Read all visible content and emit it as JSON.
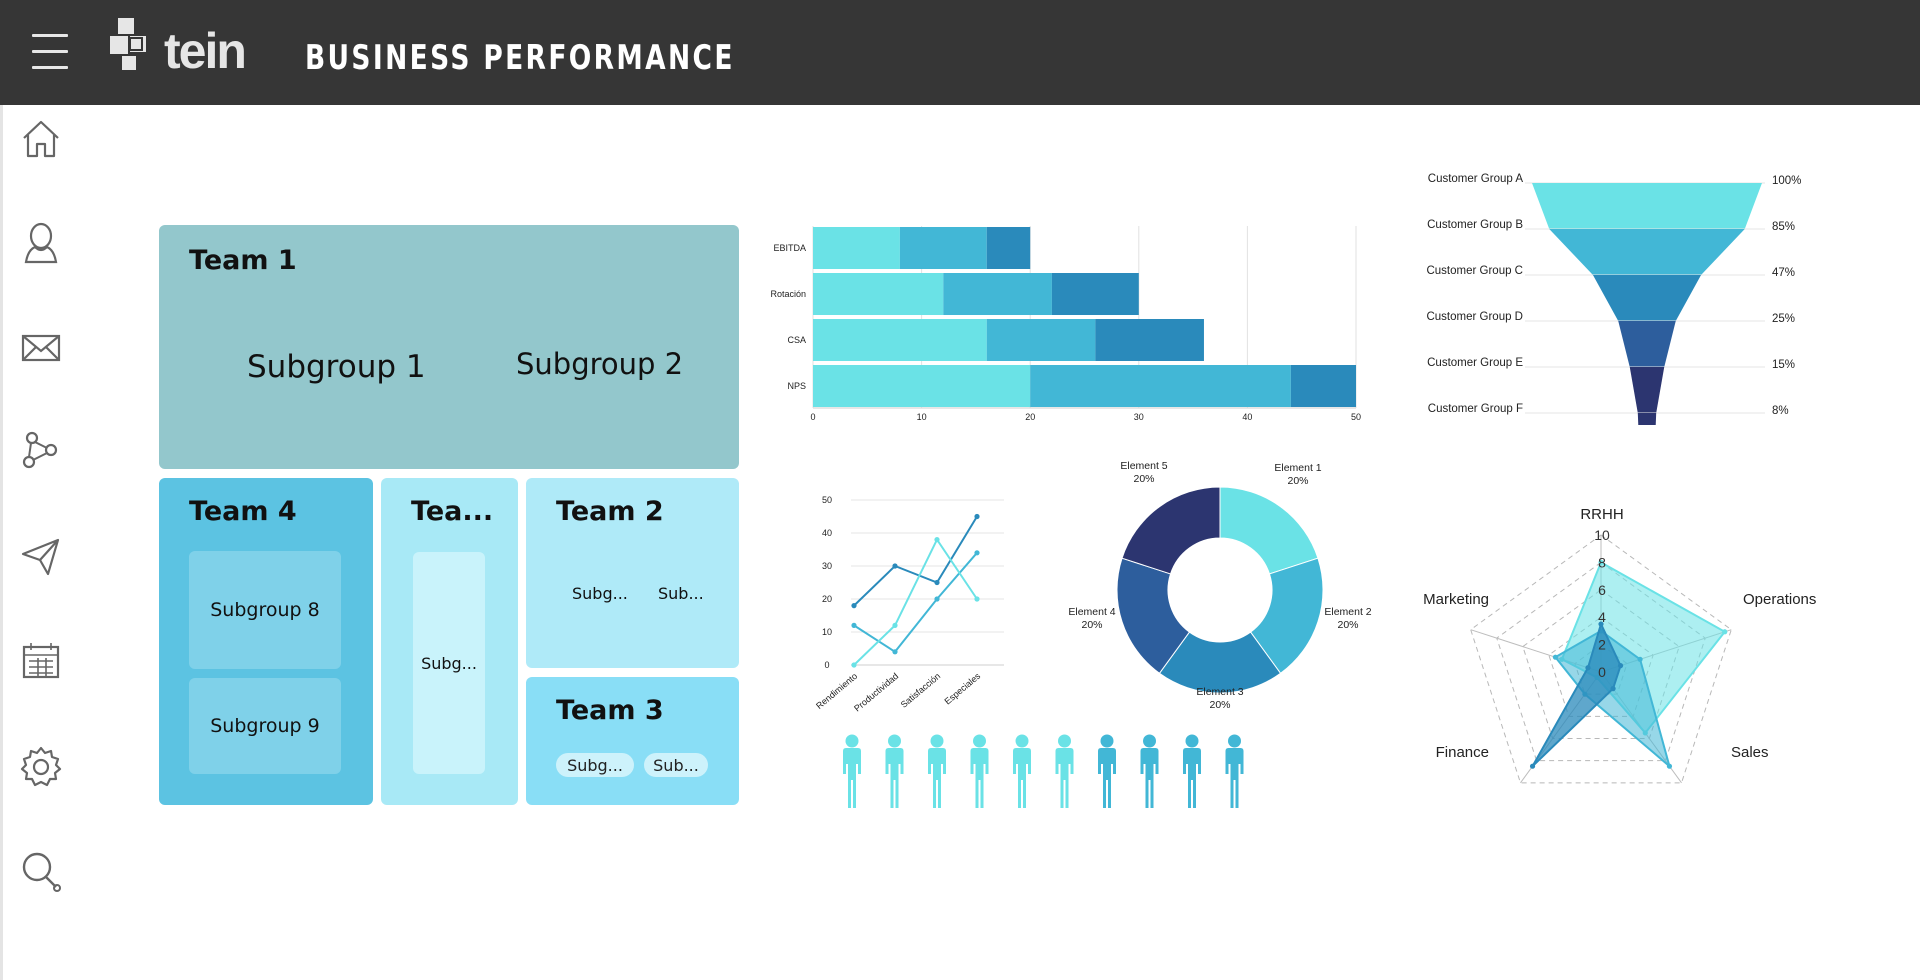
{
  "header": {
    "app_title": "BUSINESS PERFORMANCE",
    "logo_text": "tein"
  },
  "sidebar": {
    "items": [
      "home-icon",
      "user-icon",
      "mail-icon",
      "share-icon",
      "send-icon",
      "calendar-icon",
      "settings-icon",
      "search-icon"
    ]
  },
  "treemap": {
    "team1": {
      "title": "Team 1",
      "subgroups": [
        "Subgroup 1",
        "Subgroup 2"
      ]
    },
    "team4": {
      "title": "Team 4",
      "subgroups": [
        "Subgroup 8",
        "Subgroup 9"
      ]
    },
    "team5": {
      "title": "Tea...",
      "subgroups": [
        "Subg..."
      ]
    },
    "team2": {
      "title": "Team 2",
      "subgroups": [
        "Subg...",
        "Sub..."
      ]
    },
    "team3": {
      "title": "Team 3",
      "subgroups": [
        "Subg...",
        "Sub..."
      ]
    }
  },
  "colors": {
    "c1": "#6ae2e6",
    "c2": "#42b7d6",
    "c3": "#2a8abb",
    "c4": "#2d5e9d",
    "c5": "#2c3570"
  },
  "chart_data": [
    {
      "type": "bar",
      "orientation": "horizontal",
      "stacked": true,
      "categories": [
        "EBITDA",
        "Rotación",
        "CSA",
        "NPS"
      ],
      "series": [
        {
          "values": [
            8,
            12,
            16,
            20
          ]
        },
        {
          "values": [
            8,
            10,
            10,
            24
          ]
        },
        {
          "values": [
            4,
            8,
            10,
            6
          ]
        }
      ],
      "xlim": [
        0,
        50
      ],
      "xticks": [
        "0",
        "10",
        "20",
        "30",
        "40",
        "50"
      ],
      "grid": true
    },
    {
      "type": "funnel",
      "categories": [
        "Customer Group A",
        "Customer Group B",
        "Customer Group C",
        "Customer Group D",
        "Customer Group E",
        "Customer Group F"
      ],
      "labels": [
        "100%",
        "85%",
        "47%",
        "25%",
        "15%",
        "8%"
      ],
      "values": [
        100,
        85,
        47,
        25,
        15,
        8
      ]
    },
    {
      "type": "line",
      "categories": [
        "Rendimiento",
        "Productividad",
        "Satisfacción",
        "Especiales"
      ],
      "series": [
        {
          "values": [
            18,
            30,
            25,
            45
          ]
        },
        {
          "values": [
            12,
            4,
            20,
            34
          ]
        },
        {
          "values": [
            0,
            12,
            38,
            20
          ]
        }
      ],
      "ylim": [
        0,
        50
      ],
      "yticks": [
        "0",
        "10",
        "20",
        "30",
        "40",
        "50"
      ],
      "grid": true
    },
    {
      "type": "pie",
      "donut": true,
      "categories": [
        "Element 1",
        "Element 2",
        "Element 3",
        "Element 4",
        "Element 5"
      ],
      "values": [
        20,
        20,
        20,
        20,
        20
      ],
      "labels": [
        "20%",
        "20%",
        "20%",
        "20%",
        "20%"
      ]
    },
    {
      "type": "pictogram",
      "total": 10,
      "values": [
        6,
        4
      ],
      "note": "first 6 figures light, last 4 figures darker"
    },
    {
      "type": "radar",
      "axes": [
        "RRHH",
        "Operations",
        "Sales",
        "Finance",
        "Marketing"
      ],
      "rlim": [
        0,
        10
      ],
      "rticks": [
        "0",
        "2",
        "4",
        "6",
        "8",
        "10"
      ],
      "series": [
        {
          "values": [
            8,
            9.5,
            5.5,
            0.5,
            3
          ]
        },
        {
          "values": [
            3,
            3,
            8.5,
            2,
            3.5
          ]
        },
        {
          "values": [
            3.5,
            1.5,
            1.5,
            8.5,
            1
          ]
        }
      ]
    }
  ]
}
